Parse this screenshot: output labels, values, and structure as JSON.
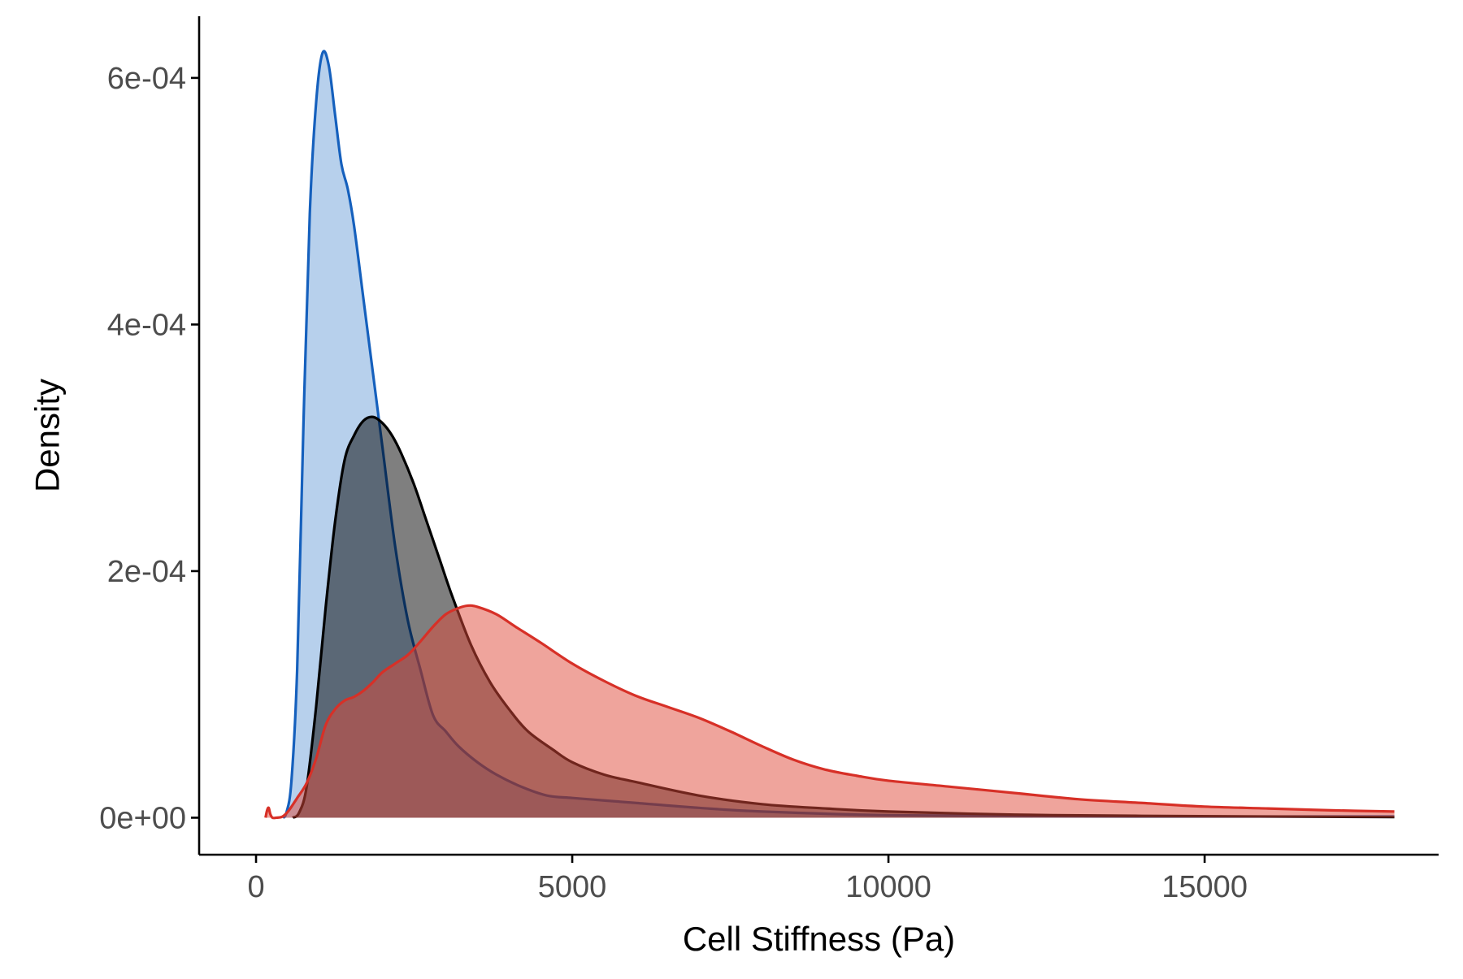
{
  "chart_data": {
    "type": "area",
    "title": "",
    "xlabel": "Cell Stiffness (Pa)",
    "ylabel": "Density",
    "xlim": [
      -900,
      18700
    ],
    "ylim": [
      -3e-05,
      0.00065
    ],
    "x_ticks": [
      0,
      5000,
      10000,
      15000
    ],
    "x_tick_labels": [
      "0",
      "5000",
      "10000",
      "15000"
    ],
    "y_ticks": [
      0,
      0.0002,
      0.0004,
      0.0006
    ],
    "y_tick_labels": [
      "0e+00",
      "2e-04",
      "4e-04",
      "6e-04"
    ],
    "grid": false,
    "legend": "none",
    "series": [
      {
        "fill": "#6fa1da",
        "stroke": "#1560bd",
        "points": [
          [
            420,
            0
          ],
          [
            480,
            4e-06
          ],
          [
            560,
            3e-05
          ],
          [
            650,
            0.00012
          ],
          [
            750,
            0.00032
          ],
          [
            850,
            0.00049
          ],
          [
            950,
            0.00058
          ],
          [
            1050,
            0.00062
          ],
          [
            1150,
            0.00061
          ],
          [
            1250,
            0.00057
          ],
          [
            1350,
            0.00053
          ],
          [
            1450,
            0.00051
          ],
          [
            1550,
            0.00048
          ],
          [
            1700,
            0.00042
          ],
          [
            1850,
            0.00036
          ],
          [
            2000,
            0.0003
          ],
          [
            2200,
            0.00022
          ],
          [
            2400,
            0.00016
          ],
          [
            2600,
            0.00012
          ],
          [
            2800,
            8.3e-05
          ],
          [
            3000,
            7e-05
          ],
          [
            3200,
            5.8e-05
          ],
          [
            3500,
            4.5e-05
          ],
          [
            3800,
            3.5e-05
          ],
          [
            4200,
            2.5e-05
          ],
          [
            4600,
            1.8e-05
          ],
          [
            5000,
            1.6e-05
          ],
          [
            5500,
            1.4e-05
          ],
          [
            6000,
            1.2e-05
          ],
          [
            7000,
            8e-06
          ],
          [
            8000,
            5e-06
          ],
          [
            10000,
            2e-06
          ],
          [
            13000,
            1e-06
          ],
          [
            18000,
            1e-06
          ]
        ]
      },
      {
        "fill": "#000000",
        "stroke": "#000000",
        "points": [
          [
            580,
            0
          ],
          [
            680,
            4e-06
          ],
          [
            800,
            2.5e-05
          ],
          [
            950,
            9e-05
          ],
          [
            1100,
            0.00017
          ],
          [
            1250,
            0.00024
          ],
          [
            1400,
            0.00029
          ],
          [
            1550,
            0.00031
          ],
          [
            1700,
            0.000322
          ],
          [
            1850,
            0.000325
          ],
          [
            2000,
            0.00032
          ],
          [
            2150,
            0.00031
          ],
          [
            2300,
            0.000295
          ],
          [
            2500,
            0.00027
          ],
          [
            2700,
            0.00024
          ],
          [
            2900,
            0.00021
          ],
          [
            3100,
            0.00018
          ],
          [
            3400,
            0.00014
          ],
          [
            3700,
            0.00011
          ],
          [
            4000,
            8.8e-05
          ],
          [
            4300,
            7e-05
          ],
          [
            4700,
            5.5e-05
          ],
          [
            5000,
            4.5e-05
          ],
          [
            5500,
            3.5e-05
          ],
          [
            6000,
            2.9e-05
          ],
          [
            7000,
            1.8e-05
          ],
          [
            8000,
            1.1e-05
          ],
          [
            9000,
            7.5e-06
          ],
          [
            10000,
            5e-06
          ],
          [
            12000,
            2.5e-06
          ],
          [
            14000,
            1.5e-06
          ],
          [
            18000,
            5e-07
          ]
        ]
      },
      {
        "fill": "#e04a3a",
        "stroke": "#d73027",
        "points": [
          [
            150,
            0
          ],
          [
            175,
            6e-06
          ],
          [
            200,
            8e-06
          ],
          [
            225,
            3e-06
          ],
          [
            260,
            0
          ],
          [
            320,
            0
          ],
          [
            420,
            1e-06
          ],
          [
            520,
            6e-06
          ],
          [
            650,
            1.6e-05
          ],
          [
            800,
            2.8e-05
          ],
          [
            950,
            4.8e-05
          ],
          [
            1100,
            7.5e-05
          ],
          [
            1250,
            8.8e-05
          ],
          [
            1400,
            9.5e-05
          ],
          [
            1550,
            9.8e-05
          ],
          [
            1700,
            0.000103
          ],
          [
            1850,
            0.00011
          ],
          [
            2000,
            0.000118
          ],
          [
            2200,
            0.000125
          ],
          [
            2400,
            0.000132
          ],
          [
            2600,
            0.000143
          ],
          [
            2800,
            0.000155
          ],
          [
            3000,
            0.000165
          ],
          [
            3200,
            0.00017
          ],
          [
            3350,
            0.000172
          ],
          [
            3500,
            0.000171
          ],
          [
            3800,
            0.000165
          ],
          [
            4100,
            0.000155
          ],
          [
            4500,
            0.000142
          ],
          [
            5000,
            0.000125
          ],
          [
            5500,
            0.000111
          ],
          [
            6000,
            9.9e-05
          ],
          [
            6500,
            9e-05
          ],
          [
            7000,
            8.1e-05
          ],
          [
            7500,
            7e-05
          ],
          [
            8000,
            5.8e-05
          ],
          [
            8500,
            4.7e-05
          ],
          [
            9000,
            3.9e-05
          ],
          [
            9500,
            3.4e-05
          ],
          [
            10000,
            3e-05
          ],
          [
            11000,
            2.5e-05
          ],
          [
            12000,
            2e-05
          ],
          [
            13000,
            1.5e-05
          ],
          [
            14000,
            1.2e-05
          ],
          [
            15000,
            9e-06
          ],
          [
            16000,
            7.5e-06
          ],
          [
            17000,
            6e-06
          ],
          [
            18000,
            5e-06
          ]
        ]
      }
    ]
  }
}
